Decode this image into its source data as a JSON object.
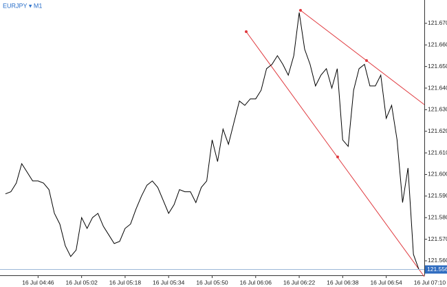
{
  "chart_data": {
    "type": "line",
    "title": "EURJPY ▾ M1",
    "x": [
      "16 Jul 04:34",
      "16 Jul 04:36",
      "16 Jul 04:38",
      "16 Jul 04:40",
      "16 Jul 04:42",
      "16 Jul 04:44",
      "16 Jul 04:46",
      "16 Jul 04:48",
      "16 Jul 04:50",
      "16 Jul 04:52",
      "16 Jul 04:54",
      "16 Jul 04:56",
      "16 Jul 04:58",
      "16 Jul 05:00",
      "16 Jul 05:02",
      "16 Jul 05:04",
      "16 Jul 05:06",
      "16 Jul 05:08",
      "16 Jul 05:10",
      "16 Jul 05:12",
      "16 Jul 05:14",
      "16 Jul 05:16",
      "16 Jul 05:18",
      "16 Jul 05:20",
      "16 Jul 05:22",
      "16 Jul 05:24",
      "16 Jul 05:26",
      "16 Jul 05:28",
      "16 Jul 05:30",
      "16 Jul 05:32",
      "16 Jul 05:34",
      "16 Jul 05:36",
      "16 Jul 05:38",
      "16 Jul 05:40",
      "16 Jul 05:42",
      "16 Jul 05:44",
      "16 Jul 05:46",
      "16 Jul 05:48",
      "16 Jul 05:50",
      "16 Jul 05:52",
      "16 Jul 05:54",
      "16 Jul 05:56",
      "16 Jul 05:58",
      "16 Jul 06:00",
      "16 Jul 06:02",
      "16 Jul 06:04",
      "16 Jul 06:06",
      "16 Jul 06:08",
      "16 Jul 06:10",
      "16 Jul 06:12",
      "16 Jul 06:14",
      "16 Jul 06:16",
      "16 Jul 06:18",
      "16 Jul 06:20",
      "16 Jul 06:22",
      "16 Jul 06:24",
      "16 Jul 06:26",
      "16 Jul 06:28",
      "16 Jul 06:30",
      "16 Jul 06:32",
      "16 Jul 06:34",
      "16 Jul 06:36",
      "16 Jul 06:38",
      "16 Jul 06:40",
      "16 Jul 06:42",
      "16 Jul 06:44",
      "16 Jul 06:46",
      "16 Jul 06:48",
      "16 Jul 06:50",
      "16 Jul 06:52",
      "16 Jul 06:54",
      "16 Jul 06:56",
      "16 Jul 06:58",
      "16 Jul 07:00",
      "16 Jul 07:02",
      "16 Jul 07:04",
      "16 Jul 07:06"
    ],
    "values": [
      121.591,
      121.592,
      121.596,
      121.605,
      121.601,
      121.597,
      121.597,
      121.596,
      121.593,
      121.582,
      121.577,
      121.567,
      121.562,
      121.565,
      121.58,
      121.575,
      121.58,
      121.582,
      121.576,
      121.572,
      121.568,
      121.569,
      121.575,
      121.577,
      121.584,
      121.59,
      121.595,
      121.597,
      121.594,
      121.588,
      121.582,
      121.586,
      121.593,
      121.592,
      121.592,
      121.587,
      121.594,
      121.597,
      121.616,
      121.606,
      121.621,
      121.614,
      121.624,
      121.634,
      121.632,
      121.635,
      121.635,
      121.639,
      121.649,
      121.651,
      121.655,
      121.651,
      121.646,
      121.655,
      121.675,
      121.658,
      121.651,
      121.641,
      121.646,
      121.649,
      121.64,
      121.649,
      121.616,
      121.613,
      121.639,
      121.649,
      121.651,
      121.641,
      121.641,
      121.646,
      121.626,
      121.632,
      121.616,
      121.587,
      121.603,
      121.563,
      121.556
    ],
    "color": "#000000",
    "last_price": 121.556,
    "xlim": [
      "16 Jul 04:32",
      "16 Jul 07:08"
    ],
    "xticks": [
      "16 Jul 04:46",
      "16 Jul 05:02",
      "16 Jul 05:18",
      "16 Jul 05:34",
      "16 Jul 05:50",
      "16 Jul 06:06",
      "16 Jul 06:22",
      "16 Jul 06:38",
      "16 Jul 06:54",
      "16 Jul 07:10"
    ],
    "ylim": [
      121.5533,
      121.6808
    ],
    "yticks": [
      {
        "value": 121.56,
        "label": "121.560"
      },
      {
        "value": 121.57,
        "label": "121.570"
      },
      {
        "value": 121.58,
        "label": "121.580"
      },
      {
        "value": 121.59,
        "label": "121.590"
      },
      {
        "value": 121.6,
        "label": "121.600"
      },
      {
        "value": 121.61,
        "label": "121.610"
      },
      {
        "value": 121.62,
        "label": "121.620"
      },
      {
        "value": 121.63,
        "label": "121.630"
      },
      {
        "value": 121.64,
        "label": "121.640"
      },
      {
        "value": 121.65,
        "label": "121.650"
      },
      {
        "value": 121.66,
        "label": "121.660"
      },
      {
        "value": 121.67,
        "label": "121.670"
      }
    ],
    "grid": false
  }
}
